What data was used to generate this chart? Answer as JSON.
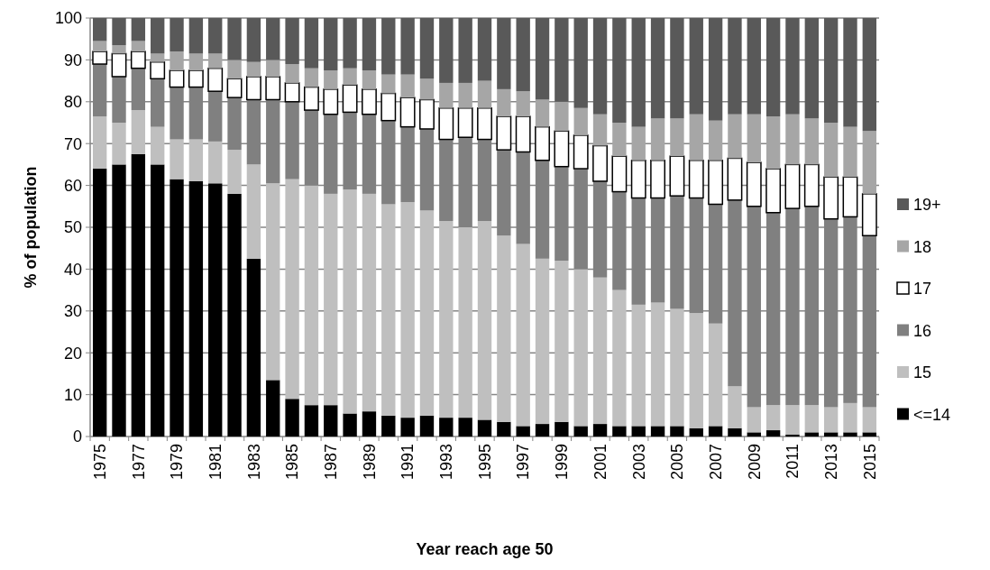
{
  "chart_data": {
    "type": "bar",
    "stacked": true,
    "xlabel": "Year reach age 50",
    "ylabel": "% of population",
    "categories": [
      "1975",
      null,
      "1977",
      null,
      "1979",
      null,
      "1981",
      null,
      "1983",
      null,
      "1985",
      null,
      "1987",
      null,
      "1989",
      null,
      "1991",
      null,
      "1993",
      null,
      "1995",
      null,
      "1997",
      null,
      "1999",
      null,
      "2001",
      null,
      "2003",
      null,
      "2005",
      null,
      "2007",
      null,
      "2009",
      null,
      "2011",
      null,
      "2013",
      null,
      "2015"
    ],
    "ylim": [
      0,
      100
    ],
    "yticks": [
      0,
      10,
      20,
      30,
      40,
      50,
      60,
      70,
      80,
      90,
      100
    ],
    "grid": "y",
    "legend": "right",
    "series": [
      {
        "name": "<=14",
        "color": "#000000",
        "values": [
          64,
          65,
          67.5,
          65,
          61.5,
          61,
          60.5,
          58,
          42.5,
          13.5,
          9,
          7.5,
          7.5,
          5.5,
          6,
          5,
          4.5,
          5,
          4.5,
          4.5,
          4,
          3.5,
          2.5,
          3,
          3.5,
          2.5,
          3,
          2.5,
          2.5,
          2.5,
          2.5,
          2,
          2.5,
          2,
          1,
          1.5,
          0.5,
          1,
          1,
          1,
          1
        ]
      },
      {
        "name": "15",
        "color": "#bfbfbf",
        "values": [
          12.5,
          10,
          10.5,
          9,
          9.5,
          10,
          10,
          10.5,
          22.5,
          47,
          52.5,
          52.5,
          50.5,
          53.5,
          52,
          50.5,
          51.5,
          49,
          47,
          45.5,
          47.5,
          44.5,
          43.5,
          39.5,
          38.5,
          37.5,
          35,
          32.5,
          29,
          29.5,
          28,
          27.5,
          24.5,
          10,
          6,
          6,
          7,
          6.5,
          6,
          7,
          6
        ]
      },
      {
        "name": "16",
        "color": "#808080",
        "values": [
          12.5,
          11,
          10,
          11.5,
          12.5,
          12.5,
          12,
          12.5,
          15.5,
          20,
          18.5,
          18,
          19,
          18.5,
          19,
          20,
          18,
          19.5,
          19.5,
          21.5,
          19.5,
          20.5,
          22,
          23.5,
          22.5,
          24,
          23,
          23.5,
          25.5,
          25,
          27,
          27.5,
          28.5,
          44.5,
          48,
          46,
          47,
          47.5,
          45,
          44.5,
          41
        ]
      },
      {
        "name": "17",
        "color": "#ffffff",
        "values": [
          3,
          5.5,
          4,
          4,
          4,
          4,
          5.5,
          4.5,
          5.5,
          5.5,
          4.5,
          5.5,
          6,
          6.5,
          6,
          6.5,
          7,
          7,
          7.5,
          7,
          7.5,
          8,
          8.5,
          8,
          8.5,
          8,
          8.5,
          8.5,
          9,
          9,
          9.5,
          9,
          10.5,
          10,
          10.5,
          10.5,
          10.5,
          10,
          10,
          9.5,
          10
        ]
      },
      {
        "name": "18",
        "color": "#a6a6a6",
        "values": [
          2.5,
          2,
          2.5,
          2,
          4.5,
          4,
          3.5,
          4.5,
          3.5,
          4,
          4.5,
          4.5,
          4.5,
          4,
          4.5,
          4.5,
          5.5,
          5,
          6,
          6,
          6.5,
          6.5,
          6,
          6.5,
          7,
          6.5,
          7.5,
          8,
          8,
          10,
          9,
          11,
          9.5,
          10.5,
          11.5,
          12.5,
          12,
          11,
          13,
          12,
          15
        ]
      },
      {
        "name": "19+",
        "color": "#595959",
        "values": [
          5.5,
          6.5,
          5.5,
          8.5,
          8,
          8.5,
          8.5,
          10,
          10.5,
          10,
          11,
          12,
          12.5,
          12,
          12.5,
          13.5,
          13.5,
          14.5,
          15.5,
          15.5,
          15,
          17,
          17.5,
          19.5,
          20,
          21.5,
          23,
          25,
          26,
          24,
          24,
          23,
          24.5,
          23,
          23,
          23.5,
          23,
          24,
          25,
          26,
          27
        ]
      }
    ]
  }
}
